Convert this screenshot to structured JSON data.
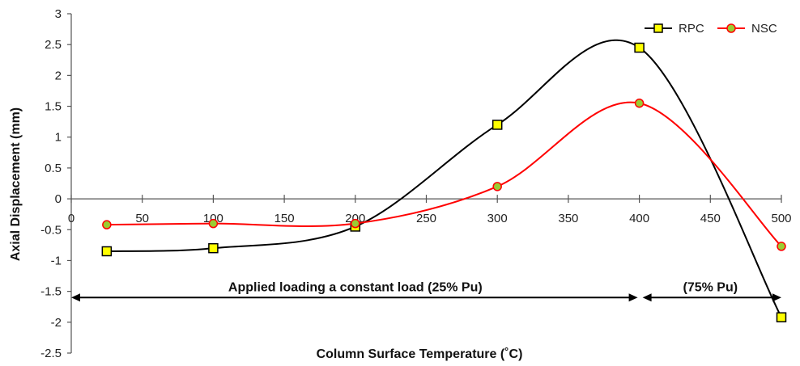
{
  "chart_data": {
    "type": "line",
    "xlabel": "Column Surface Temperature (˚C)",
    "ylabel": "Axial Displacement (mm)",
    "xlim": [
      0,
      500
    ],
    "ylim": [
      -2.5,
      3
    ],
    "xticks": [
      0,
      50,
      100,
      150,
      200,
      250,
      300,
      350,
      400,
      450,
      500
    ],
    "yticks": [
      3,
      2.5,
      2,
      1.5,
      1,
      0.5,
      0,
      -0.5,
      -1,
      -1.5,
      -2,
      -2.5
    ],
    "grid": false,
    "legend_position": "top-right",
    "series": [
      {
        "name": "RPC",
        "color": "#000000",
        "marker": "square",
        "marker_fill": "#ffff00",
        "x": [
          25,
          100,
          200,
          300,
          400,
          500
        ],
        "y": [
          -0.85,
          -0.8,
          -0.45,
          1.2,
          2.45,
          -1.92
        ]
      },
      {
        "name": "NSC",
        "color": "#ff0000",
        "marker": "circle",
        "marker_fill": "#9acd32",
        "x": [
          25,
          100,
          200,
          300,
          400,
          500
        ],
        "y": [
          -0.42,
          -0.4,
          -0.4,
          0.2,
          1.55,
          -0.77
        ]
      }
    ],
    "annotations": [
      {
        "text": "Applied loading a constant load (25% Pu)",
        "x_start": 0,
        "x_end": 400,
        "y": -1.6
      },
      {
        "text": "(75% Pu)",
        "x_start": 400,
        "x_end": 500,
        "y": -1.6
      }
    ]
  }
}
